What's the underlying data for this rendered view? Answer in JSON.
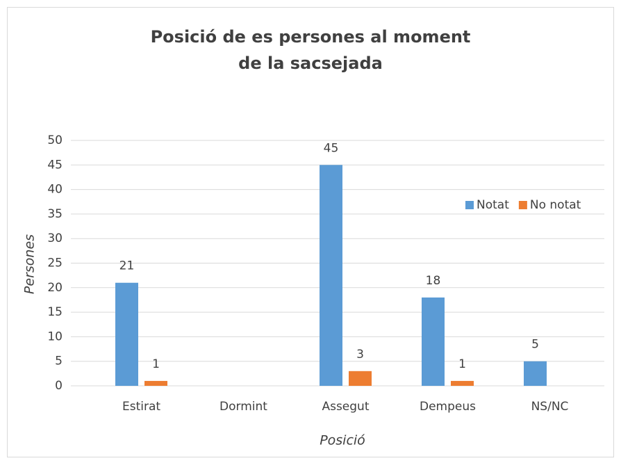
{
  "chart_data": {
    "type": "bar",
    "title": [
      "Posició de es persones al moment",
      "de la sacsejada"
    ],
    "x_label": "Posició",
    "y_label": "Persones",
    "categories": [
      "Estirat",
      "Dormint",
      "Assegut",
      "Dempeus",
      "NS/NC"
    ],
    "series": [
      {
        "name": "Notat",
        "color": "#5b9bd5",
        "values": [
          21,
          null,
          45,
          18,
          5
        ]
      },
      {
        "name": "No notat",
        "color": "#ed7d31",
        "values": [
          1,
          null,
          3,
          1,
          null
        ]
      }
    ],
    "ylim": [
      0,
      50
    ],
    "yticks": [
      0,
      5,
      10,
      15,
      20,
      25,
      30,
      35,
      40,
      45,
      50
    ],
    "grid": true,
    "legend": "right"
  }
}
